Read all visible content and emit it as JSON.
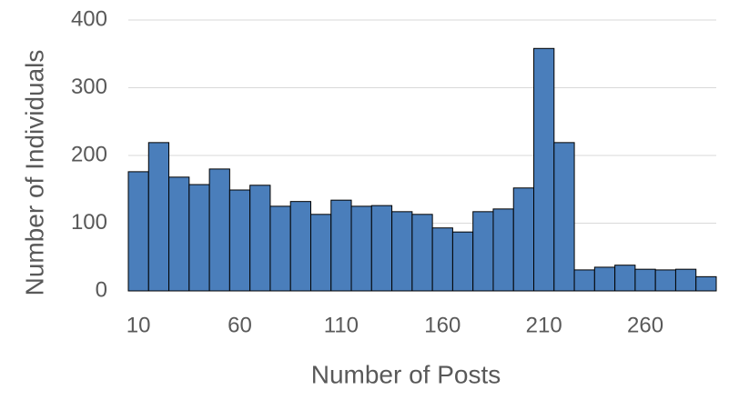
{
  "chart_data": {
    "type": "histogram",
    "xlabel": "Number of Posts",
    "ylabel": "Number of Individuals",
    "bins": [
      5,
      15,
      25,
      35,
      45,
      55,
      65,
      75,
      85,
      95,
      105,
      115,
      125,
      135,
      145,
      155,
      165,
      175,
      185,
      195,
      205,
      215,
      225,
      235,
      245,
      255,
      265,
      275,
      285,
      295
    ],
    "values": [
      176,
      219,
      168,
      157,
      180,
      149,
      156,
      125,
      132,
      113,
      134,
      125,
      126,
      117,
      113,
      93,
      87,
      117,
      121,
      152,
      358,
      219,
      31,
      35,
      38,
      32,
      31,
      32,
      21
    ],
    "color": "#4a7ebb",
    "xlim": [
      5,
      295
    ],
    "xticks": [
      10,
      60,
      110,
      160,
      210,
      260
    ],
    "ylim": [
      0,
      400
    ],
    "yticks": [
      0,
      100,
      200,
      300,
      400
    ],
    "grid": true
  }
}
